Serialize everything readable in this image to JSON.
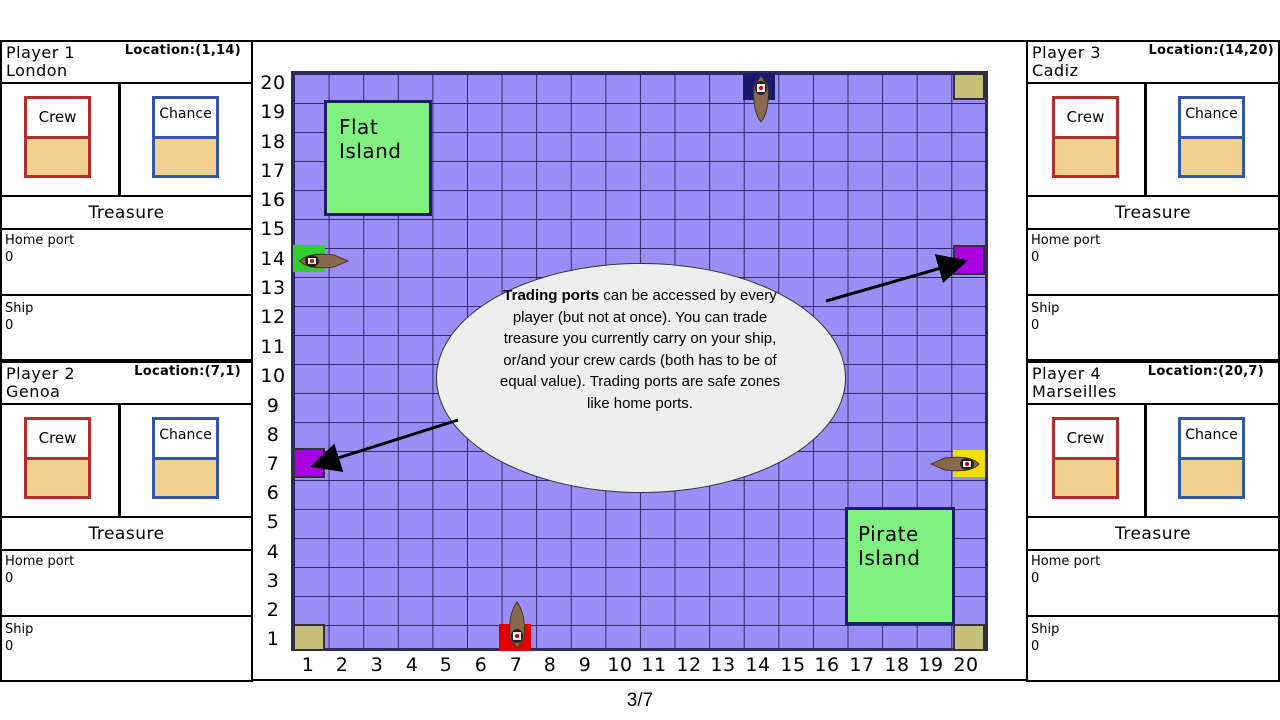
{
  "players": [
    {
      "name": "Player 1",
      "port": "London",
      "location": "Location:(1,14)",
      "crew_label": "Crew",
      "chance_label": "Chance",
      "treasure_label": "Treasure",
      "home_port_label": "Home port",
      "home_port_value": "0",
      "ship_label": "Ship",
      "ship_value": "0"
    },
    {
      "name": "Player 2",
      "port": "Genoa",
      "location": "Location:(7,1)",
      "crew_label": "Crew",
      "chance_label": "Chance",
      "treasure_label": "Treasure",
      "home_port_label": "Home port",
      "home_port_value": "0",
      "ship_label": "Ship",
      "ship_value": "0"
    },
    {
      "name": "Player 3",
      "port": "Cadiz",
      "location": "Location:(14,20)",
      "crew_label": "Crew",
      "chance_label": "Chance",
      "treasure_label": "Treasure",
      "home_port_label": "Home port",
      "home_port_value": "0",
      "ship_label": "Ship",
      "ship_value": "0"
    },
    {
      "name": "Player 4",
      "port": "Marseilles",
      "location": "Location:(20,7)",
      "crew_label": "Crew",
      "chance_label": "Chance",
      "treasure_label": "Treasure",
      "home_port_label": "Home port",
      "home_port_value": "0",
      "ship_label": "Ship",
      "ship_value": "0"
    }
  ],
  "board": {
    "y_labels": [
      "20",
      "19",
      "18",
      "17",
      "16",
      "15",
      "14",
      "13",
      "12",
      "11",
      "10",
      "9",
      "8",
      "7",
      "6",
      "5",
      "4",
      "3",
      "2",
      "1"
    ],
    "x_labels": [
      "1",
      "2",
      "3",
      "4",
      "5",
      "6",
      "7",
      "8",
      "9",
      "10",
      "11",
      "12",
      "13",
      "14",
      "15",
      "16",
      "17",
      "18",
      "19",
      "20"
    ],
    "islands": {
      "flat_line1": "Flat",
      "flat_line2": "Island",
      "pirate_line1": "Pirate",
      "pirate_line2": "Island"
    },
    "colors": {
      "sea": "#9b8ef7",
      "island": "#80f080",
      "trading_port": "#a800e0",
      "corner_port": "#c5bf7a",
      "london_port": "#33cc33",
      "genoa_port": "#e00000",
      "cadiz_port": "#1a1a6a",
      "marseilles_port": "#f0e000"
    }
  },
  "callout": {
    "bold": "Trading ports",
    "text": " can be accessed by every player (but not at once). You can trade treasure you currently carry on your ship, or/and your crew cards (both has to be of equal value). Trading ports are safe zones like home ports."
  },
  "page_number": "3/7"
}
